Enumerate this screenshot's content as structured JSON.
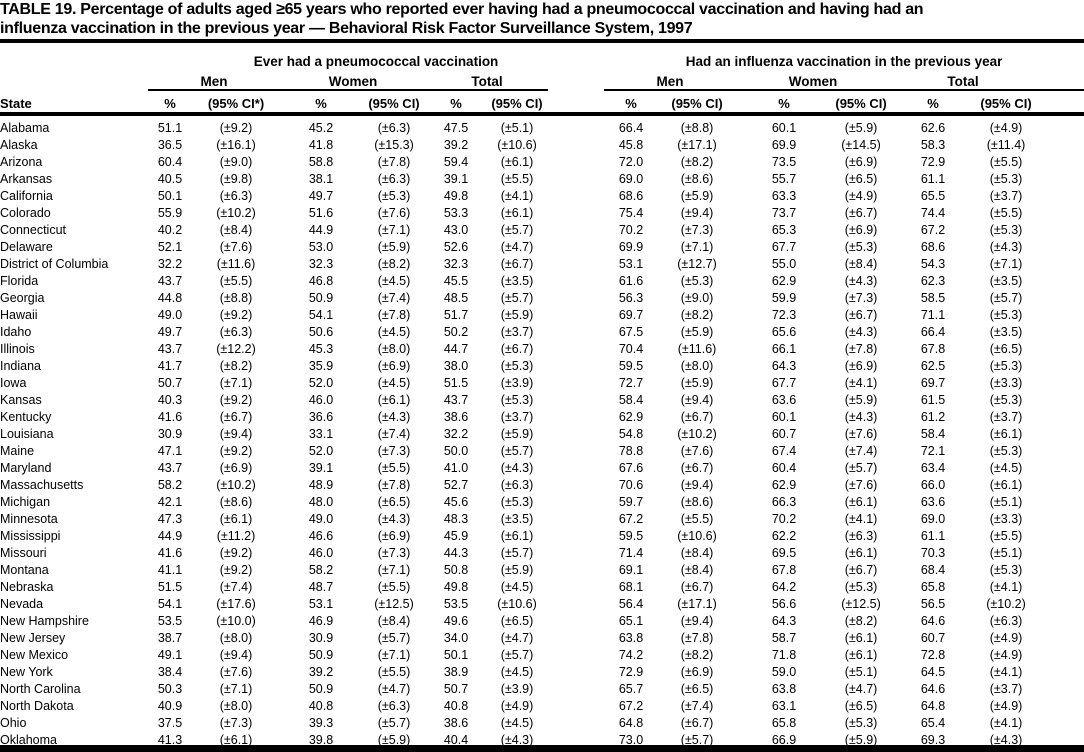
{
  "title": {
    "line1": "TABLE 19. Percentage of adults aged ≥65 years who reported ever having had a pneumococcal vaccination and having had an",
    "line2": "influenza vaccination in the previous year — Behavioral Risk Factor Surveillance System, 1997"
  },
  "table": {
    "group1_label": "Ever had a pneumococcal vaccination",
    "group2_label": "Had an influenza vaccination in the previous year",
    "subgroups": [
      "Men",
      "Women",
      "Total"
    ],
    "state_header": "State",
    "pct_header": "%",
    "ci_header_first": "(95% CI*)",
    "ci_header": "(95% CI)",
    "rows": [
      {
        "state": "Alabama",
        "values": [
          "51.1",
          "(±9.2)",
          "45.2",
          "(±6.3)",
          "47.5",
          "(±5.1)",
          "66.4",
          "(±8.8)",
          "60.1",
          "(±5.9)",
          "62.6",
          "(±4.9)"
        ]
      },
      {
        "state": "Alaska",
        "values": [
          "36.5",
          "(±16.1)",
          "41.8",
          "(±15.3)",
          "39.2",
          "(±10.6)",
          "45.8",
          "(±17.1)",
          "69.9",
          "(±14.5)",
          "58.3",
          "(±11.4)"
        ]
      },
      {
        "state": "Arizona",
        "values": [
          "60.4",
          "(±9.0)",
          "58.8",
          "(±7.8)",
          "59.4",
          "(±6.1)",
          "72.0",
          "(±8.2)",
          "73.5",
          "(±6.9)",
          "72.9",
          "(±5.5)"
        ]
      },
      {
        "state": "Arkansas",
        "values": [
          "40.5",
          "(±9.8)",
          "38.1",
          "(±6.3)",
          "39.1",
          "(±5.5)",
          "69.0",
          "(±8.6)",
          "55.7",
          "(±6.5)",
          "61.1",
          "(±5.3)"
        ]
      },
      {
        "state": "California",
        "values": [
          "50.1",
          "(±6.3)",
          "49.7",
          "(±5.3)",
          "49.8",
          "(±4.1)",
          "68.6",
          "(±5.9)",
          "63.3",
          "(±4.9)",
          "65.5",
          "(±3.7)"
        ]
      },
      {
        "state": "Colorado",
        "values": [
          "55.9",
          "(±10.2)",
          "51.6",
          "(±7.6)",
          "53.3",
          "(±6.1)",
          "75.4",
          "(±9.4)",
          "73.7",
          "(±6.7)",
          "74.4",
          "(±5.5)"
        ]
      },
      {
        "state": "Connecticut",
        "values": [
          "40.2",
          "(±8.4)",
          "44.9",
          "(±7.1)",
          "43.0",
          "(±5.7)",
          "70.2",
          "(±7.3)",
          "65.3",
          "(±6.9)",
          "67.2",
          "(±5.3)"
        ]
      },
      {
        "state": "Delaware",
        "values": [
          "52.1",
          "(±7.6)",
          "53.0",
          "(±5.9)",
          "52.6",
          "(±4.7)",
          "69.9",
          "(±7.1)",
          "67.7",
          "(±5.3)",
          "68.6",
          "(±4.3)"
        ]
      },
      {
        "state": "District of Columbia",
        "values": [
          "32.2",
          "(±11.6)",
          "32.3",
          "(±8.2)",
          "32.3",
          "(±6.7)",
          "53.1",
          "(±12.7)",
          "55.0",
          "(±8.4)",
          "54.3",
          "(±7.1)"
        ]
      },
      {
        "state": "Florida",
        "values": [
          "43.7",
          "(±5.5)",
          "46.8",
          "(±4.5)",
          "45.5",
          "(±3.5)",
          "61.6",
          "(±5.3)",
          "62.9",
          "(±4.3)",
          "62.3",
          "(±3.5)"
        ]
      },
      {
        "state": "Georgia",
        "values": [
          "44.8",
          "(±8.8)",
          "50.9",
          "(±7.4)",
          "48.5",
          "(±5.7)",
          "56.3",
          "(±9.0)",
          "59.9",
          "(±7.3)",
          "58.5",
          "(±5.7)"
        ]
      },
      {
        "state": "Hawaii",
        "values": [
          "49.0",
          "(±9.2)",
          "54.1",
          "(±7.8)",
          "51.7",
          "(±5.9)",
          "69.7",
          "(±8.2)",
          "72.3",
          "(±6.7)",
          "71.1",
          "(±5.3)"
        ]
      },
      {
        "state": "Idaho",
        "values": [
          "49.7",
          "(±6.3)",
          "50.6",
          "(±4.5)",
          "50.2",
          "(±3.7)",
          "67.5",
          "(±5.9)",
          "65.6",
          "(±4.3)",
          "66.4",
          "(±3.5)"
        ]
      },
      {
        "state": "Illinois",
        "values": [
          "43.7",
          "(±12.2)",
          "45.3",
          "(±8.0)",
          "44.7",
          "(±6.7)",
          "70.4",
          "(±11.6)",
          "66.1",
          "(±7.8)",
          "67.8",
          "(±6.5)"
        ]
      },
      {
        "state": "Indiana",
        "values": [
          "41.7",
          "(±8.2)",
          "35.9",
          "(±6.9)",
          "38.0",
          "(±5.3)",
          "59.5",
          "(±8.0)",
          "64.3",
          "(±6.9)",
          "62.5",
          "(±5.3)"
        ]
      },
      {
        "state": "Iowa",
        "values": [
          "50.7",
          "(±7.1)",
          "52.0",
          "(±4.5)",
          "51.5",
          "(±3.9)",
          "72.7",
          "(±5.9)",
          "67.7",
          "(±4.1)",
          "69.7",
          "(±3.3)"
        ]
      },
      {
        "state": "Kansas",
        "values": [
          "40.3",
          "(±9.2)",
          "46.0",
          "(±6.1)",
          "43.7",
          "(±5.3)",
          "58.4",
          "(±9.4)",
          "63.6",
          "(±5.9)",
          "61.5",
          "(±5.3)"
        ]
      },
      {
        "state": "Kentucky",
        "values": [
          "41.6",
          "(±6.7)",
          "36.6",
          "(±4.3)",
          "38.6",
          "(±3.7)",
          "62.9",
          "(±6.7)",
          "60.1",
          "(±4.3)",
          "61.2",
          "(±3.7)"
        ]
      },
      {
        "state": "Louisiana",
        "values": [
          "30.9",
          "(±9.4)",
          "33.1",
          "(±7.4)",
          "32.2",
          "(±5.9)",
          "54.8",
          "(±10.2)",
          "60.7",
          "(±7.6)",
          "58.4",
          "(±6.1)"
        ]
      },
      {
        "state": "Maine",
        "values": [
          "47.1",
          "(±9.2)",
          "52.0",
          "(±7.3)",
          "50.0",
          "(±5.7)",
          "78.8",
          "(±7.6)",
          "67.4",
          "(±7.4)",
          "72.1",
          "(±5.3)"
        ]
      },
      {
        "state": "Maryland",
        "values": [
          "43.7",
          "(±6.9)",
          "39.1",
          "(±5.5)",
          "41.0",
          "(±4.3)",
          "67.6",
          "(±6.7)",
          "60.4",
          "(±5.7)",
          "63.4",
          "(±4.5)"
        ]
      },
      {
        "state": "Massachusetts",
        "values": [
          "58.2",
          "(±10.2)",
          "48.9",
          "(±7.8)",
          "52.7",
          "(±6.3)",
          "70.6",
          "(±9.4)",
          "62.9",
          "(±7.6)",
          "66.0",
          "(±6.1)"
        ]
      },
      {
        "state": "Michigan",
        "values": [
          "42.1",
          "(±8.6)",
          "48.0",
          "(±6.5)",
          "45.6",
          "(±5.3)",
          "59.7",
          "(±8.6)",
          "66.3",
          "(±6.1)",
          "63.6",
          "(±5.1)"
        ]
      },
      {
        "state": "Minnesota",
        "values": [
          "47.3",
          "(±6.1)",
          "49.0",
          "(±4.3)",
          "48.3",
          "(±3.5)",
          "67.2",
          "(±5.5)",
          "70.2",
          "(±4.1)",
          "69.0",
          "(±3.3)"
        ]
      },
      {
        "state": "Mississippi",
        "values": [
          "44.9",
          "(±11.2)",
          "46.6",
          "(±6.9)",
          "45.9",
          "(±6.1)",
          "59.5",
          "(±10.6)",
          "62.2",
          "(±6.3)",
          "61.1",
          "(±5.5)"
        ]
      },
      {
        "state": "Missouri",
        "values": [
          "41.6",
          "(±9.2)",
          "46.0",
          "(±7.3)",
          "44.3",
          "(±5.7)",
          "71.4",
          "(±8.4)",
          "69.5",
          "(±6.1)",
          "70.3",
          "(±5.1)"
        ]
      },
      {
        "state": "Montana",
        "values": [
          "41.1",
          "(±9.2)",
          "58.2",
          "(±7.1)",
          "50.8",
          "(±5.9)",
          "69.1",
          "(±8.4)",
          "67.8",
          "(±6.7)",
          "68.4",
          "(±5.3)"
        ]
      },
      {
        "state": "Nebraska",
        "values": [
          "51.5",
          "(±7.4)",
          "48.7",
          "(±5.5)",
          "49.8",
          "(±4.5)",
          "68.1",
          "(±6.7)",
          "64.2",
          "(±5.3)",
          "65.8",
          "(±4.1)"
        ]
      },
      {
        "state": "Nevada",
        "values": [
          "54.1",
          "(±17.6)",
          "53.1",
          "(±12.5)",
          "53.5",
          "(±10.6)",
          "56.4",
          "(±17.1)",
          "56.6",
          "(±12.5)",
          "56.5",
          "(±10.2)"
        ]
      },
      {
        "state": "New Hampshire",
        "values": [
          "53.5",
          "(±10.0)",
          "46.9",
          "(±8.4)",
          "49.6",
          "(±6.5)",
          "65.1",
          "(±9.4)",
          "64.3",
          "(±8.2)",
          "64.6",
          "(±6.3)"
        ]
      },
      {
        "state": "New Jersey",
        "values": [
          "38.7",
          "(±8.0)",
          "30.9",
          "(±5.7)",
          "34.0",
          "(±4.7)",
          "63.8",
          "(±7.8)",
          "58.7",
          "(±6.1)",
          "60.7",
          "(±4.9)"
        ]
      },
      {
        "state": "New Mexico",
        "values": [
          "49.1",
          "(±9.4)",
          "50.9",
          "(±7.1)",
          "50.1",
          "(±5.7)",
          "74.2",
          "(±8.2)",
          "71.8",
          "(±6.1)",
          "72.8",
          "(±4.9)"
        ]
      },
      {
        "state": "New York",
        "values": [
          "38.4",
          "(±7.6)",
          "39.2",
          "(±5.5)",
          "38.9",
          "(±4.5)",
          "72.9",
          "(±6.9)",
          "59.0",
          "(±5.1)",
          "64.5",
          "(±4.1)"
        ]
      },
      {
        "state": "North Carolina",
        "values": [
          "50.3",
          "(±7.1)",
          "50.9",
          "(±4.7)",
          "50.7",
          "(±3.9)",
          "65.7",
          "(±6.5)",
          "63.8",
          "(±4.7)",
          "64.6",
          "(±3.7)"
        ]
      },
      {
        "state": "North Dakota",
        "values": [
          "40.9",
          "(±8.0)",
          "40.8",
          "(±6.3)",
          "40.8",
          "(±4.9)",
          "67.2",
          "(±7.4)",
          "63.1",
          "(±6.5)",
          "64.8",
          "(±4.9)"
        ]
      },
      {
        "state": "Ohio",
        "values": [
          "37.5",
          "(±7.3)",
          "39.3",
          "(±5.7)",
          "38.6",
          "(±4.5)",
          "64.8",
          "(±6.7)",
          "65.8",
          "(±5.3)",
          "65.4",
          "(±4.1)"
        ]
      },
      {
        "state": "Oklahoma",
        "values": [
          "41.3",
          "(±6.1)",
          "39.8",
          "(±5.9)",
          "40.4",
          "(±4.3)",
          "73.0",
          "(±5.7)",
          "66.9",
          "(±5.9)",
          "69.3",
          "(±4.3)"
        ]
      }
    ]
  }
}
